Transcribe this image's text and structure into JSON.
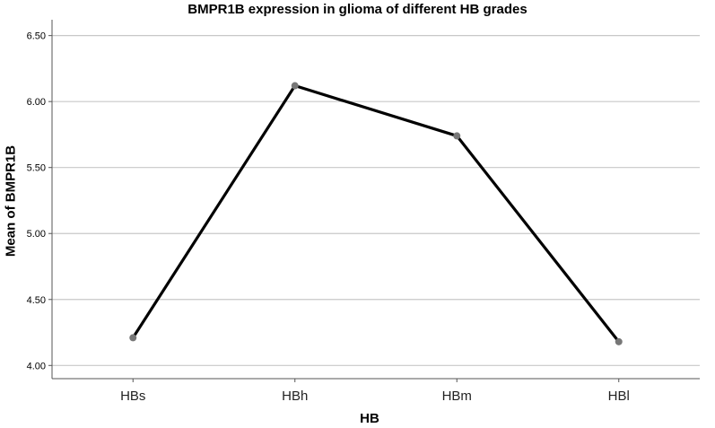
{
  "chart_data": {
    "type": "line",
    "title": "BMPR1B expression in glioma of different HB grades",
    "xlabel": "HB",
    "ylabel": "Mean of BMPR1B",
    "categories": [
      "HBs",
      "HBh",
      "HBm",
      "HBl"
    ],
    "series": [
      {
        "values": [
          4.21,
          6.12,
          5.74,
          4.18
        ]
      }
    ],
    "ylim": [
      3.9,
      6.62
    ],
    "yticks": [
      "4.00",
      "4.50",
      "5.00",
      "5.50",
      "6.00",
      "6.50"
    ],
    "grid": true,
    "legend": "none",
    "colors": {
      "line": "#000000",
      "marker": "#777777",
      "grid": "#c8c8c8",
      "axis": "#555555"
    }
  }
}
